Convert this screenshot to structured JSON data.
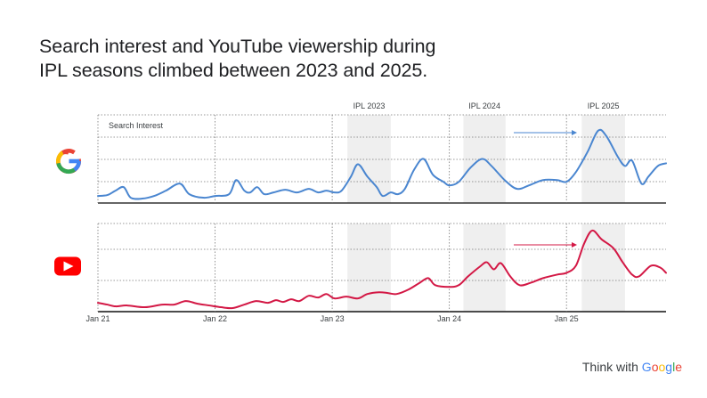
{
  "headline": {
    "line1": "Search interest and YouTube viewership during",
    "line2": "IPL seasons climbed between 2023 and 2025."
  },
  "footer": {
    "prefix": "Think with ",
    "brand_letters": [
      "G",
      "o",
      "o",
      "g",
      "l",
      "e"
    ],
    "brand_colors": [
      "#4285F4",
      "#EA4335",
      "#FBBC05",
      "#4285F4",
      "#34A853",
      "#EA4335"
    ]
  },
  "icons": {
    "google": "google-g-logo-icon",
    "youtube": "youtube-play-icon"
  },
  "colors": {
    "search_line": "#4a86d0",
    "youtube_line": "#d31845",
    "ipl_band": "#efefef",
    "grid": "#777777",
    "axis": "#333333"
  },
  "chart_data": {
    "type": "line",
    "x_ticks": [
      "Jan 21",
      "Jan 22",
      "Jan 23",
      "Jan 24",
      "Jan 25"
    ],
    "x_range": [
      2021.0,
      2025.85
    ],
    "highlight_periods": [
      {
        "label": "IPL 2023",
        "start": 2023.13,
        "end": 2023.5
      },
      {
        "label": "IPL 2024",
        "start": 2024.12,
        "end": 2024.48
      },
      {
        "label": "IPL 2025",
        "start": 2025.13,
        "end": 2025.5
      }
    ],
    "series": [
      {
        "name": "Search Interest",
        "ylim": [
          0,
          100
        ],
        "points": [
          [
            2021.0,
            8
          ],
          [
            2021.08,
            9
          ],
          [
            2021.15,
            14
          ],
          [
            2021.22,
            18
          ],
          [
            2021.28,
            6
          ],
          [
            2021.38,
            5
          ],
          [
            2021.48,
            8
          ],
          [
            2021.58,
            14
          ],
          [
            2021.7,
            22
          ],
          [
            2021.78,
            10
          ],
          [
            2021.9,
            6
          ],
          [
            2022.0,
            8
          ],
          [
            2022.12,
            10
          ],
          [
            2022.18,
            26
          ],
          [
            2022.25,
            14
          ],
          [
            2022.3,
            12
          ],
          [
            2022.36,
            18
          ],
          [
            2022.42,
            10
          ],
          [
            2022.5,
            12
          ],
          [
            2022.6,
            15
          ],
          [
            2022.7,
            12
          ],
          [
            2022.8,
            16
          ],
          [
            2022.88,
            12
          ],
          [
            2022.95,
            14
          ],
          [
            2023.02,
            12
          ],
          [
            2023.08,
            14
          ],
          [
            2023.16,
            30
          ],
          [
            2023.22,
            44
          ],
          [
            2023.3,
            30
          ],
          [
            2023.38,
            18
          ],
          [
            2023.43,
            8
          ],
          [
            2023.5,
            12
          ],
          [
            2023.56,
            10
          ],
          [
            2023.62,
            16
          ],
          [
            2023.7,
            38
          ],
          [
            2023.78,
            50
          ],
          [
            2023.86,
            32
          ],
          [
            2023.95,
            24
          ],
          [
            2024.0,
            20
          ],
          [
            2024.08,
            24
          ],
          [
            2024.18,
            40
          ],
          [
            2024.28,
            50
          ],
          [
            2024.36,
            42
          ],
          [
            2024.48,
            25
          ],
          [
            2024.58,
            16
          ],
          [
            2024.68,
            20
          ],
          [
            2024.8,
            26
          ],
          [
            2024.92,
            26
          ],
          [
            2025.0,
            24
          ],
          [
            2025.08,
            35
          ],
          [
            2025.18,
            58
          ],
          [
            2025.27,
            82
          ],
          [
            2025.34,
            76
          ],
          [
            2025.44,
            52
          ],
          [
            2025.5,
            42
          ],
          [
            2025.56,
            48
          ],
          [
            2025.64,
            22
          ],
          [
            2025.7,
            30
          ],
          [
            2025.78,
            42
          ],
          [
            2025.85,
            45
          ]
        ]
      },
      {
        "name": "YouTube",
        "ylim": [
          0,
          100
        ],
        "points": [
          [
            2021.0,
            10
          ],
          [
            2021.08,
            8
          ],
          [
            2021.15,
            6
          ],
          [
            2021.25,
            7
          ],
          [
            2021.4,
            5
          ],
          [
            2021.55,
            8
          ],
          [
            2021.65,
            8
          ],
          [
            2021.75,
            12
          ],
          [
            2021.85,
            9
          ],
          [
            2021.95,
            7
          ],
          [
            2022.05,
            5
          ],
          [
            2022.15,
            4
          ],
          [
            2022.25,
            8
          ],
          [
            2022.35,
            12
          ],
          [
            2022.45,
            10
          ],
          [
            2022.52,
            13
          ],
          [
            2022.58,
            11
          ],
          [
            2022.65,
            14
          ],
          [
            2022.72,
            12
          ],
          [
            2022.8,
            18
          ],
          [
            2022.88,
            16
          ],
          [
            2022.95,
            20
          ],
          [
            2023.02,
            15
          ],
          [
            2023.12,
            17
          ],
          [
            2023.22,
            15
          ],
          [
            2023.3,
            20
          ],
          [
            2023.4,
            22
          ],
          [
            2023.48,
            21
          ],
          [
            2023.55,
            20
          ],
          [
            2023.65,
            25
          ],
          [
            2023.75,
            33
          ],
          [
            2023.82,
            38
          ],
          [
            2023.88,
            30
          ],
          [
            2024.0,
            28
          ],
          [
            2024.08,
            30
          ],
          [
            2024.16,
            40
          ],
          [
            2024.26,
            51
          ],
          [
            2024.32,
            56
          ],
          [
            2024.38,
            48
          ],
          [
            2024.44,
            55
          ],
          [
            2024.52,
            40
          ],
          [
            2024.6,
            30
          ],
          [
            2024.7,
            33
          ],
          [
            2024.8,
            38
          ],
          [
            2024.92,
            42
          ],
          [
            2025.0,
            44
          ],
          [
            2025.08,
            52
          ],
          [
            2025.15,
            77
          ],
          [
            2025.22,
            92
          ],
          [
            2025.3,
            82
          ],
          [
            2025.4,
            72
          ],
          [
            2025.48,
            56
          ],
          [
            2025.56,
            42
          ],
          [
            2025.62,
            40
          ],
          [
            2025.72,
            52
          ],
          [
            2025.8,
            50
          ],
          [
            2025.85,
            44
          ]
        ]
      }
    ]
  }
}
